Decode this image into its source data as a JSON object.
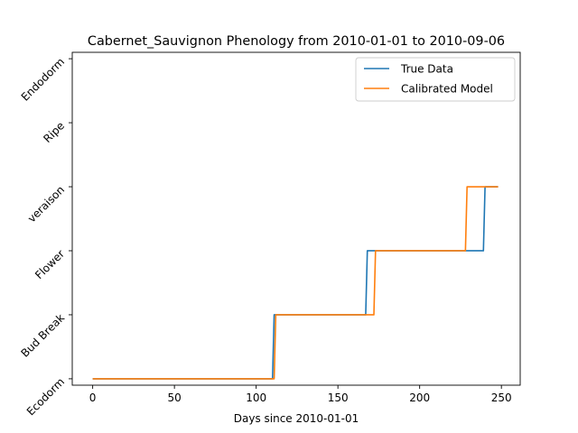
{
  "chart_data": {
    "type": "line",
    "title": "Cabernet_Sauvignon Phenology from 2010-01-01 to 2010-09-06",
    "xlabel": "Days since 2010-01-01",
    "ylabel": "",
    "xlim": [
      -12.5,
      261.5
    ],
    "ylim": [
      -0.1,
      5.1
    ],
    "x_ticks": [
      0,
      50,
      100,
      150,
      200,
      250
    ],
    "y_ticks": [
      0,
      1,
      2,
      3,
      4,
      5
    ],
    "y_tick_labels": [
      "Ecodorm",
      "Bud Break",
      "Flower",
      "veraison",
      "Ripe",
      "Endodorm"
    ],
    "grid": false,
    "legend_position": "top-right",
    "series": [
      {
        "name": "True Data",
        "color": "#1f77b4",
        "points": [
          [
            0,
            0
          ],
          [
            110,
            0
          ],
          [
            111,
            1
          ],
          [
            167,
            1
          ],
          [
            168,
            2
          ],
          [
            239,
            2
          ],
          [
            240,
            3
          ],
          [
            248,
            3
          ]
        ]
      },
      {
        "name": "Calibrated Model",
        "color": "#ff7f0e",
        "points": [
          [
            0,
            0
          ],
          [
            111,
            0
          ],
          [
            112,
            1
          ],
          [
            172,
            1
          ],
          [
            173,
            2
          ],
          [
            228,
            2
          ],
          [
            229,
            3
          ],
          [
            248,
            3
          ]
        ]
      }
    ]
  }
}
